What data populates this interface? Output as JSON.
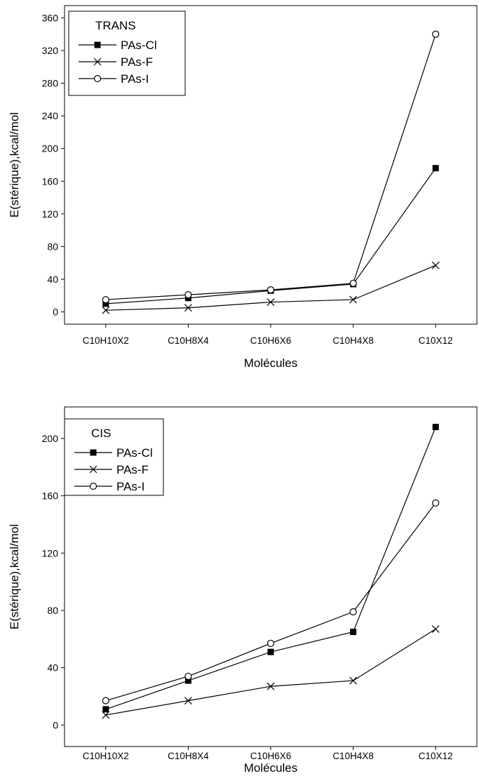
{
  "chart_data": [
    {
      "type": "line",
      "legend_title": "TRANS",
      "legend_position": "top-left",
      "grid": false,
      "xlabel": "Molécules",
      "ylabel": "E(stérique),kcal/mol",
      "categories": [
        "C10H10X2",
        "C10H8X4",
        "C10H6X6",
        "C10H4X8",
        "C10X12"
      ],
      "ylim": [
        -15,
        375
      ],
      "yticks": [
        0,
        40,
        80,
        120,
        160,
        200,
        240,
        280,
        320,
        360
      ],
      "series": [
        {
          "name": "PAs-Cl",
          "marker": "filled-square",
          "values": [
            10,
            17,
            26,
            34,
            176
          ]
        },
        {
          "name": "PAs-F",
          "marker": "cross",
          "values": [
            2,
            5,
            12,
            15,
            57
          ]
        },
        {
          "name": "PAs-I",
          "marker": "open-circle",
          "values": [
            15,
            21,
            27,
            35,
            340
          ]
        }
      ]
    },
    {
      "type": "line",
      "legend_title": "CIS",
      "legend_position": "top-left",
      "grid": false,
      "xlabel": "Molécules",
      "ylabel": "E(stérique),kcal/mol",
      "categories": [
        "C10H10X2",
        "C10H8X4",
        "C10H6X6",
        "C10H4X8",
        "C10X12"
      ],
      "ylim": [
        -15,
        222
      ],
      "yticks": [
        0,
        40,
        80,
        120,
        160,
        200
      ],
      "series": [
        {
          "name": "PAs-Cl",
          "marker": "filled-square",
          "values": [
            11,
            31,
            51,
            65,
            208
          ]
        },
        {
          "name": "PAs-F",
          "marker": "cross",
          "values": [
            7,
            17,
            27,
            31,
            67
          ]
        },
        {
          "name": "PAs-I",
          "marker": "open-circle",
          "values": [
            17,
            34,
            57,
            79,
            155
          ]
        }
      ]
    }
  ]
}
